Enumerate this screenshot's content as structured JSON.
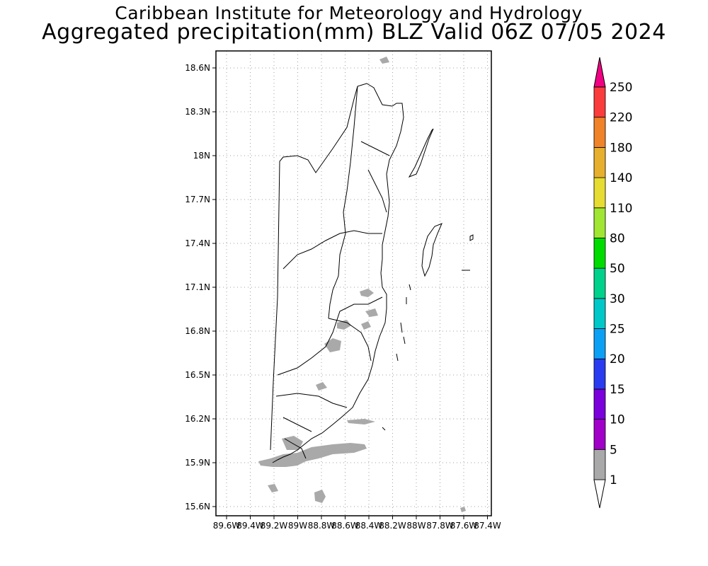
{
  "header": {
    "line1": "Caribbean Institute for Meteorology and Hydrology",
    "line2": "Aggregated precipitation(mm) BLZ Valid 06Z 07/05 2024"
  },
  "map": {
    "region": "BLZ",
    "lon_range": [
      -89.6,
      -87.4
    ],
    "lat_range": [
      15.55,
      18.72
    ],
    "grid": true,
    "lon_ticks": [
      {
        "value": -89.6,
        "label": "89.6W"
      },
      {
        "value": -89.4,
        "label": "89.4W"
      },
      {
        "value": -89.2,
        "label": "89.2W"
      },
      {
        "value": -89.0,
        "label": "89W"
      },
      {
        "value": -88.8,
        "label": "88.8W"
      },
      {
        "value": -88.6,
        "label": "88.6W"
      },
      {
        "value": -88.4,
        "label": "88.4W"
      },
      {
        "value": -88.2,
        "label": "88.2W"
      },
      {
        "value": -88.0,
        "label": "88W"
      },
      {
        "value": -87.8,
        "label": "87.8W"
      },
      {
        "value": -87.6,
        "label": "87.6W"
      },
      {
        "value": -87.4,
        "label": "87.4W"
      }
    ],
    "lat_ticks": [
      {
        "value": 18.6,
        "label": "18.6N"
      },
      {
        "value": 18.3,
        "label": "18.3N"
      },
      {
        "value": 18.0,
        "label": "18N"
      },
      {
        "value": 17.7,
        "label": "17.7N"
      },
      {
        "value": 17.4,
        "label": "17.4N"
      },
      {
        "value": 17.1,
        "label": "17.1N"
      },
      {
        "value": 16.8,
        "label": "16.8N"
      },
      {
        "value": 16.5,
        "label": "16.5N"
      },
      {
        "value": 16.2,
        "label": "16.2N"
      },
      {
        "value": 15.9,
        "label": "15.9N"
      },
      {
        "value": 15.6,
        "label": "15.6N"
      }
    ]
  },
  "colorbar": {
    "levels": [
      "1",
      "5",
      "10",
      "15",
      "20",
      "25",
      "30",
      "50",
      "80",
      "110",
      "140",
      "180",
      "220",
      "250"
    ],
    "colors": [
      "#a9a9a9",
      "#a000c8",
      "#7a00dc",
      "#2a3cf0",
      "#0ca0f5",
      "#00c8c8",
      "#00d28c",
      "#00dc00",
      "#a0e632",
      "#e6dc32",
      "#e6af2d",
      "#f08228",
      "#fa3c3c",
      "#f00082"
    ],
    "below_color": "#ffffff"
  },
  "colors": {
    "precip_light": "#a9a9a9",
    "background": "#ffffff",
    "outline": "#000000",
    "grid": "#a0a0a0"
  }
}
